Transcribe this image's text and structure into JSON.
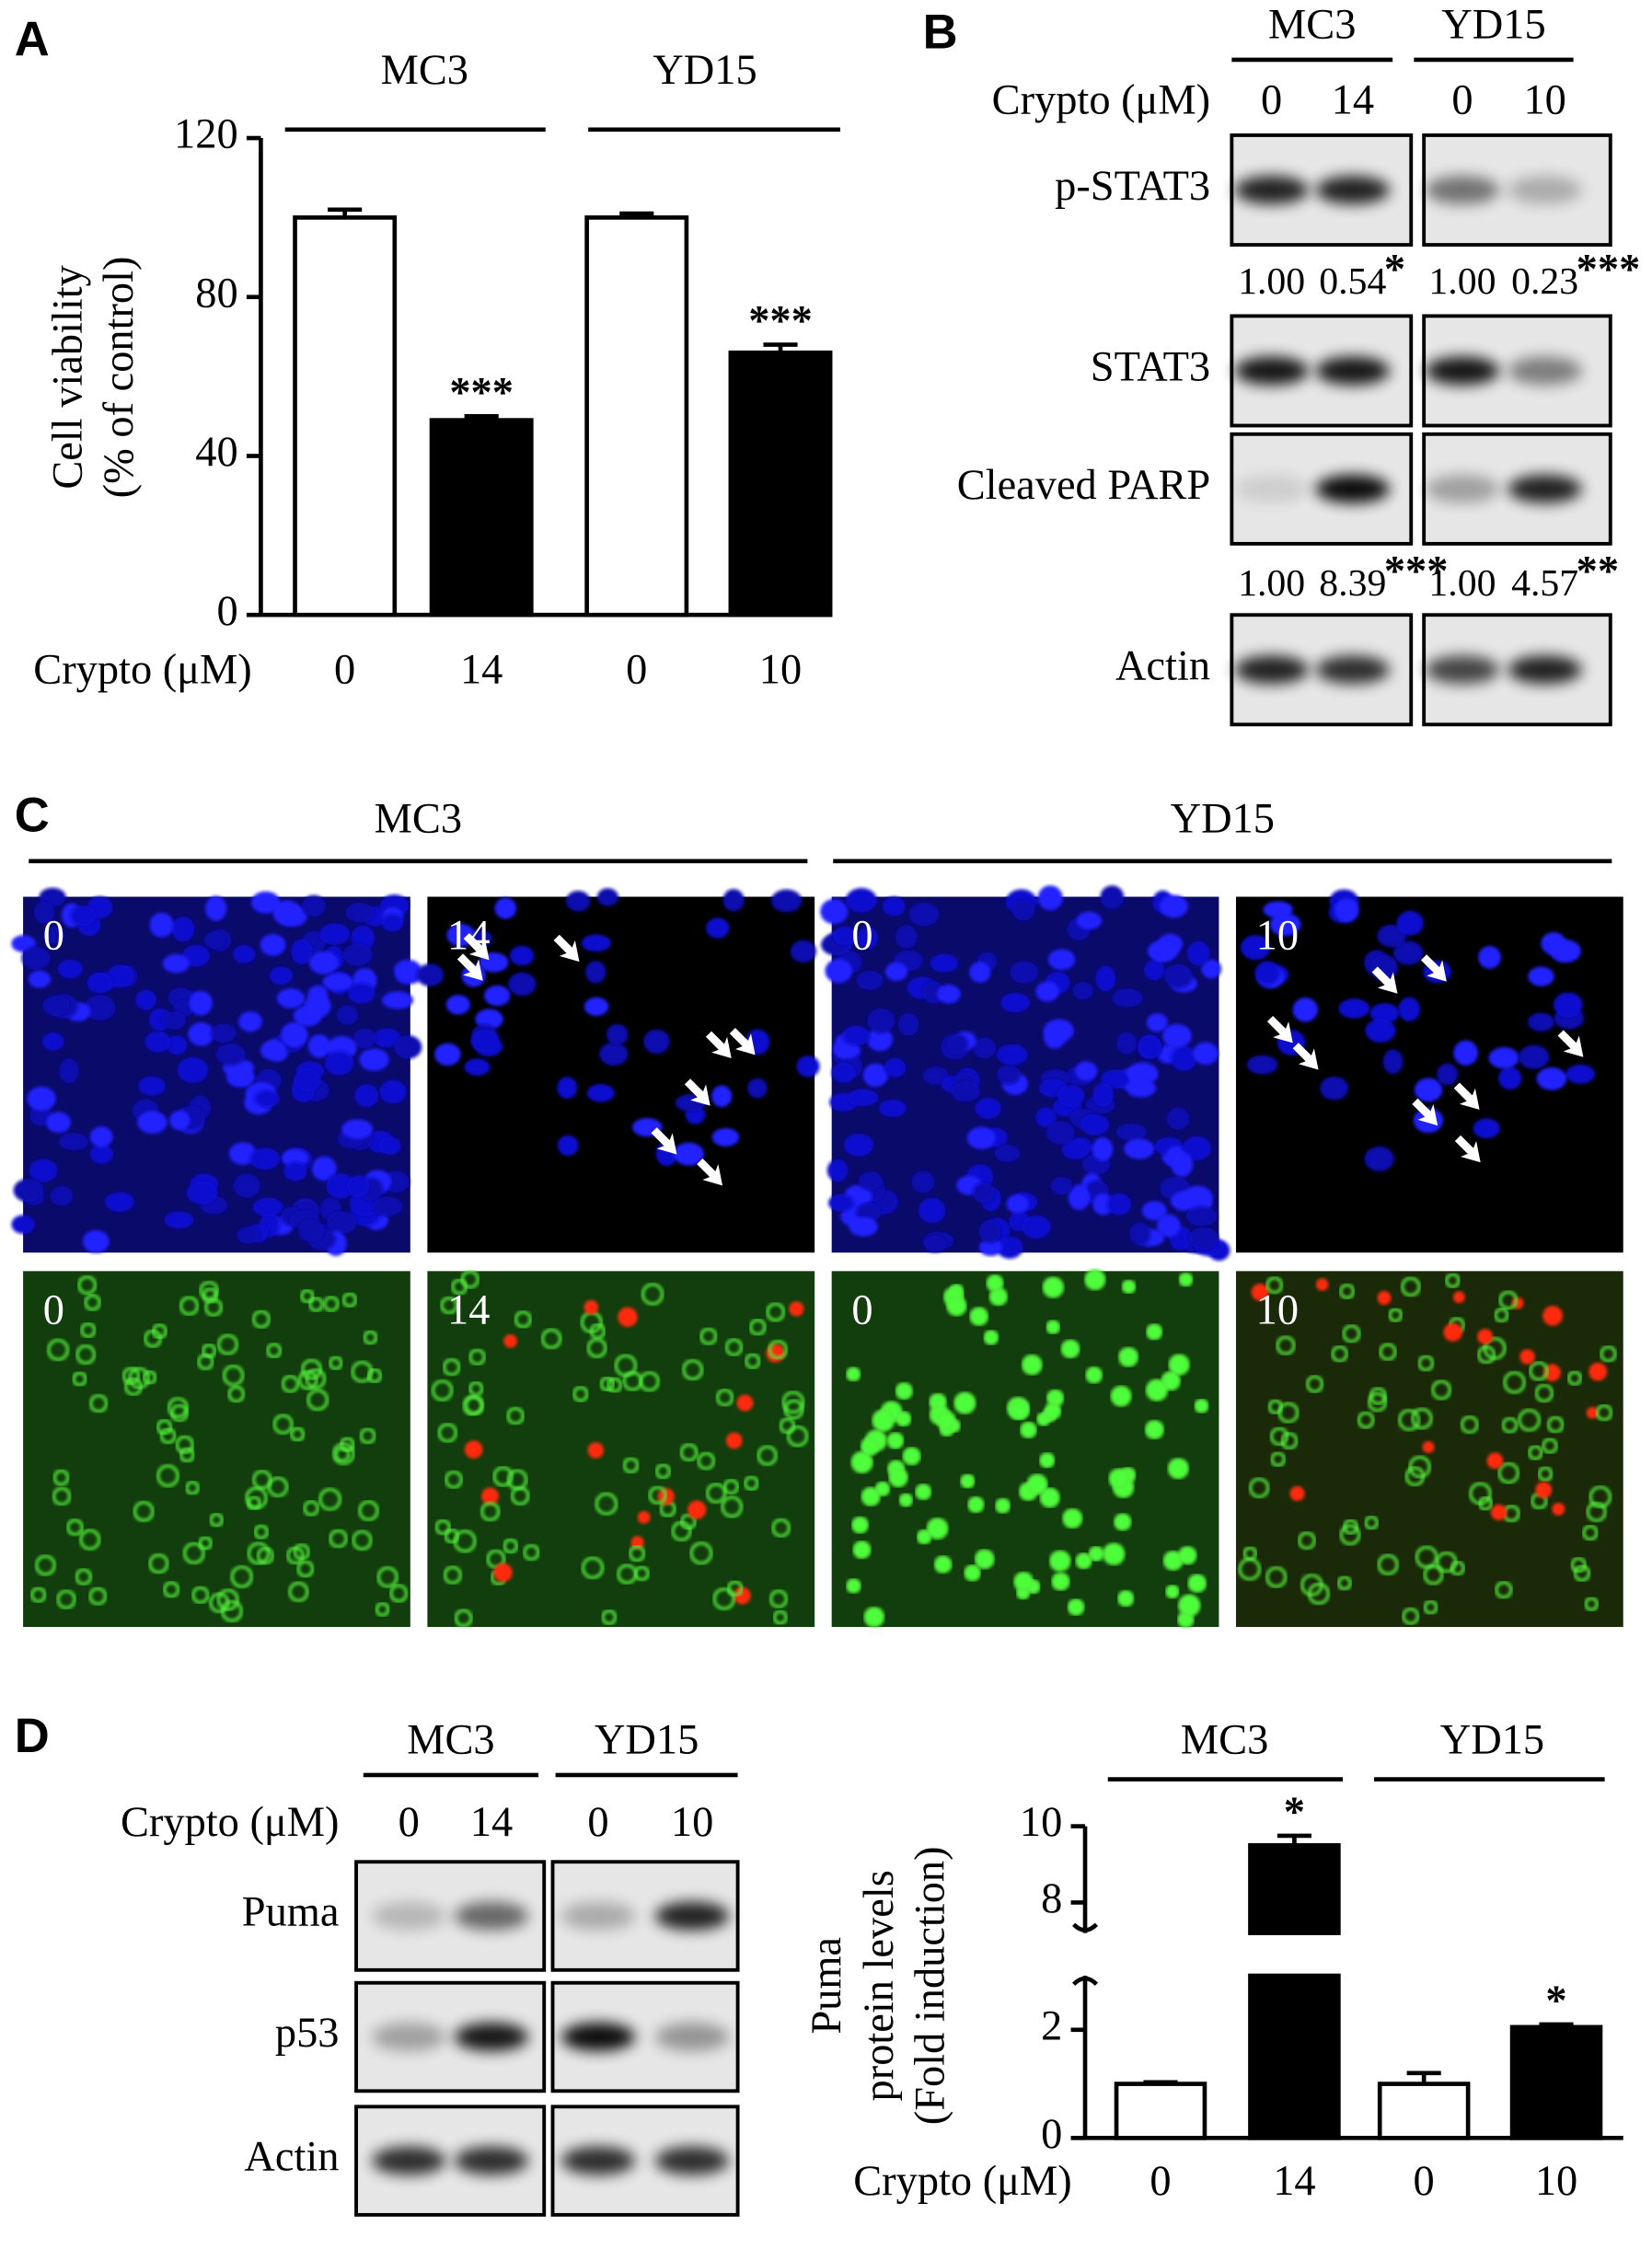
{
  "panel_labels": [
    "A",
    "B",
    "C",
    "D"
  ],
  "chart_data": [
    {
      "type": "bar",
      "group_labels": [
        "MC3",
        "YD15"
      ],
      "y_label": [
        "Cell viability",
        "(% of control)"
      ],
      "x_label": "Crypto (μM)",
      "categories": [
        "0",
        "14",
        "0",
        "10"
      ],
      "values": [
        100,
        49,
        100,
        66
      ],
      "errors": [
        2,
        1,
        1,
        2
      ],
      "colors": [
        "#ffffff",
        "#000000",
        "#ffffff",
        "#000000"
      ],
      "significance": [
        null,
        "***",
        null,
        "***"
      ],
      "y_segments": [
        {
          "ylim": [
            0,
            120
          ],
          "yticks": [
            0,
            40,
            80,
            120
          ]
        }
      ]
    },
    {
      "type": "bar",
      "group_labels": [
        "MC3",
        "YD15"
      ],
      "y_label": [
        "Puma",
        "protein levels",
        "(Fold induction)"
      ],
      "x_label": "Crypto (μM)",
      "categories": [
        "0",
        "14",
        "0",
        "10"
      ],
      "values": [
        1,
        9.5,
        1,
        2.05
      ],
      "errors": [
        0.03,
        0.25,
        0.2,
        0.05
      ],
      "colors": [
        "#ffffff",
        "#000000",
        "#ffffff",
        "#000000"
      ],
      "significance": [
        null,
        "*",
        null,
        "*"
      ],
      "y_segments": [
        {
          "ylim": [
            0,
            3
          ],
          "yticks": [
            0,
            2
          ]
        },
        {
          "ylim": [
            7.2,
            10
          ],
          "yticks": [
            8,
            10
          ]
        }
      ]
    }
  ],
  "western_B": {
    "group_labels": [
      "MC3",
      "YD15"
    ],
    "treatment_label": "Crypto (μM)",
    "lanes": [
      "0",
      "14",
      "0",
      "10"
    ],
    "rows": [
      "p-STAT3",
      "STAT3",
      "Cleaved PARP",
      "Actin"
    ],
    "quantifications": [
      {
        "values": [
          "1.00",
          "0.54",
          "1.00",
          "0.23"
        ],
        "stars": [
          null,
          "*",
          null,
          "***"
        ]
      },
      {
        "values": [
          "1.00",
          "8.39",
          "1.00",
          "4.57"
        ],
        "stars": [
          null,
          "***",
          null,
          "**"
        ]
      }
    ]
  },
  "micrographs_C": {
    "group_labels": [
      "MC3",
      "YD15"
    ],
    "rows": [
      [
        "0",
        "14",
        "0",
        "10"
      ],
      [
        "0",
        "14",
        "0",
        "10"
      ]
    ]
  },
  "western_D": {
    "group_labels": [
      "MC3",
      "YD15"
    ],
    "treatment_label": "Crypto (μM)",
    "lanes": [
      "0",
      "14",
      "0",
      "10"
    ],
    "rows": [
      "Puma",
      "p53",
      "Actin"
    ]
  }
}
